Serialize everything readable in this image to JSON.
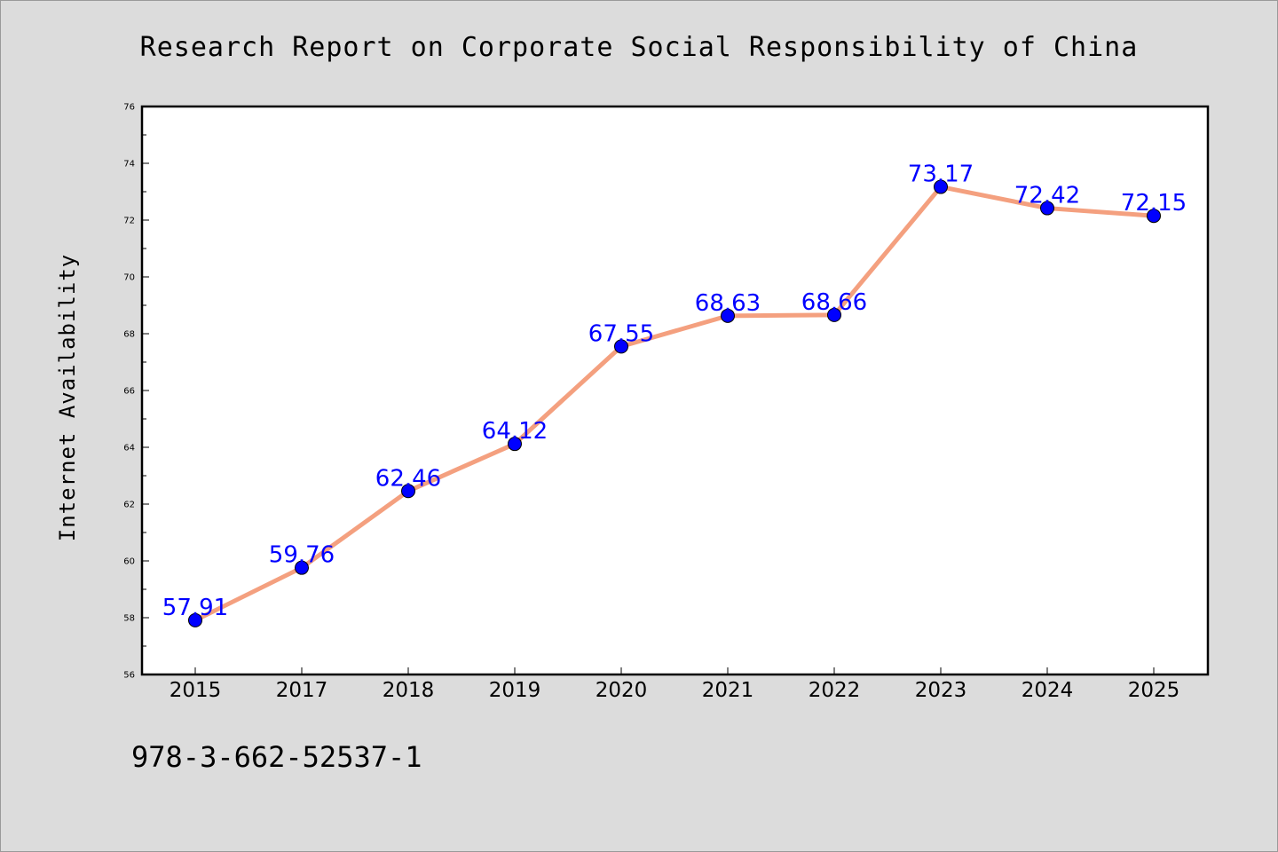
{
  "chart_data": {
    "type": "line",
    "title": "Research Report on Corporate Social Responsibility of China",
    "xlabel": "",
    "ylabel": "Internet Availability",
    "categories": [
      "2015",
      "2017",
      "2018",
      "2019",
      "2020",
      "2021",
      "2022",
      "2023",
      "2024",
      "2025"
    ],
    "series": [
      {
        "values": [
          57.91,
          59.76,
          62.46,
          64.12,
          67.55,
          68.63,
          68.66,
          73.17,
          72.42,
          72.15
        ],
        "line_color": "#f4a07f",
        "marker_color": "#0000ff"
      }
    ],
    "data_labels": [
      "57.91",
      "59.76",
      "62.46",
      "64.12",
      "67.55",
      "68.63",
      "68.66",
      "73.17",
      "72.42",
      "72.15"
    ],
    "data_label_color": "#0000ff",
    "ylim": [
      56,
      76
    ],
    "yticks": [
      "56",
      "58",
      "60",
      "62",
      "64",
      "66",
      "68",
      "70",
      "72",
      "74",
      "76"
    ],
    "grid": false,
    "legend": "none"
  },
  "footnote": "978-3-662-52537-1"
}
